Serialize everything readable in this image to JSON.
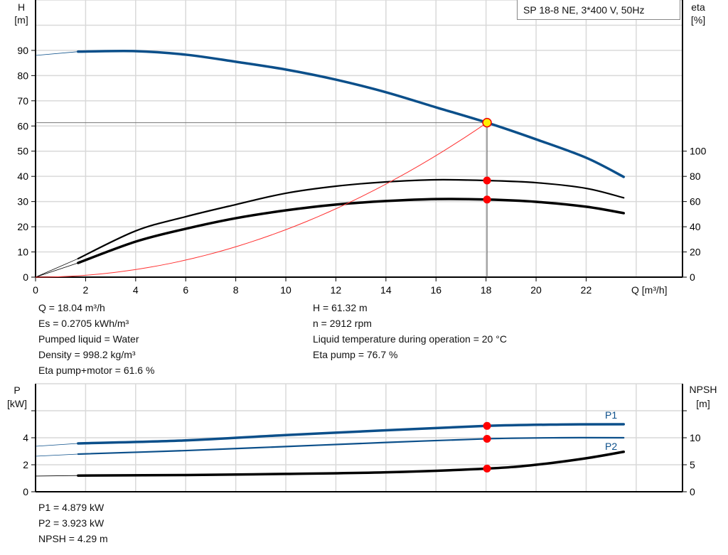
{
  "chart_data": [
    {
      "type": "line",
      "title": "SP 18-8 NE, 3*400 V, 50Hz",
      "xlabel": "Q [m³/h]",
      "xlim": [
        0,
        25.85
      ],
      "xticks": [
        0,
        2,
        4,
        6,
        8,
        10,
        12,
        14,
        16,
        18,
        20,
        22
      ],
      "ylabel_left": {
        "name": "H",
        "unit": "[m]"
      },
      "ylim_left": [
        0,
        110
      ],
      "yticks_left": [
        0,
        10,
        20,
        30,
        40,
        50,
        60,
        70,
        80,
        90
      ],
      "ylabel_right": {
        "name": "eta",
        "unit": "[%]"
      },
      "ylim_right": [
        0,
        220
      ],
      "yticks_right": [
        0,
        20,
        40,
        60,
        80,
        100
      ],
      "grid": true,
      "series": [
        {
          "id": "H",
          "axis": "left",
          "color": "#0b4f8a",
          "thin_start": [
            0,
            88
          ],
          "x": [
            1.7,
            4,
            6,
            8,
            10,
            12,
            14,
            16,
            18.04,
            20,
            22,
            23.5
          ],
          "y": [
            89.5,
            89.7,
            88.3,
            85.5,
            82.4,
            78.4,
            73.4,
            67.4,
            61.32,
            54.7,
            47.4,
            39.8
          ]
        },
        {
          "id": "eta_pump",
          "axis": "right",
          "color": "#000000",
          "thin_start": [
            0,
            0
          ],
          "x": [
            1.7,
            4,
            6,
            8,
            10,
            12,
            14,
            16,
            18.04,
            20,
            22,
            23.5
          ],
          "y": [
            14.7,
            36.7,
            48,
            57.6,
            66.6,
            72.2,
            75.6,
            77.3,
            76.7,
            75,
            70.5,
            63
          ]
        },
        {
          "id": "eta_total",
          "axis": "right",
          "color": "#000000",
          "thin_start": [
            0,
            0
          ],
          "x": [
            1.7,
            4,
            6,
            8,
            10,
            12,
            14,
            16,
            18.04,
            20,
            22,
            23.5
          ],
          "y": [
            11.3,
            28.2,
            38.4,
            46.8,
            53,
            57.6,
            60.4,
            62,
            61.6,
            59.8,
            55.9,
            50.8
          ]
        },
        {
          "id": "system_curve",
          "axis": "left",
          "color": "#ff3030",
          "type": "quadratic",
          "through": [
            18.04,
            61.32
          ]
        }
      ],
      "duty_point": {
        "Q": 18.04,
        "H": 61.32,
        "eta_pump": 76.7,
        "eta_total": 61.6
      }
    },
    {
      "type": "line",
      "xlim": [
        0,
        25.85
      ],
      "ylabel_left": {
        "name": "P",
        "unit": "[kW]"
      },
      "ylim_left": [
        0,
        8
      ],
      "yticks_left": [
        0,
        2,
        4
      ],
      "ylabel_right": {
        "name": "NPSH",
        "unit": "[m]"
      },
      "ylim_right": [
        0,
        20
      ],
      "yticks_right": [
        0,
        5,
        10
      ],
      "grid": true,
      "series": [
        {
          "id": "P1",
          "name": "P1",
          "axis": "left",
          "color": "#0b4f8a",
          "thin_start": [
            0,
            3.37
          ],
          "x": [
            1.7,
            6,
            10,
            14,
            18.04,
            21,
            23.5
          ],
          "y": [
            3.58,
            3.8,
            4.2,
            4.55,
            4.879,
            4.98,
            5.0
          ]
        },
        {
          "id": "P2",
          "name": "P2",
          "axis": "left",
          "color": "#0b4f8a",
          "thin_start": [
            0,
            2.63
          ],
          "x": [
            1.7,
            6,
            10,
            14,
            18.04,
            21,
            23.5
          ],
          "y": [
            2.79,
            3.05,
            3.35,
            3.65,
            3.923,
            4.0,
            4.0
          ]
        },
        {
          "id": "NPSH",
          "axis": "right",
          "color": "#000000",
          "thin_start": [
            0,
            2.9
          ],
          "x": [
            1.7,
            6,
            10,
            14,
            18.04,
            20,
            22,
            23.5
          ],
          "y": [
            3.0,
            3.1,
            3.3,
            3.6,
            4.29,
            5.0,
            6.2,
            7.4
          ]
        }
      ],
      "duty_point": {
        "Q": 18.04,
        "P1": 4.879,
        "P2": 3.923,
        "NPSH": 4.29
      }
    }
  ],
  "info": {
    "left": [
      "Q = 18.04 m³/h",
      "Es = 0.2705 kWh/m³",
      "Pumped liquid = Water",
      "Density = 998.2 kg/m³",
      "Eta pump+motor = 61.6 %"
    ],
    "right": [
      "H = 61.32 m",
      "n = 2912 rpm",
      "Liquid temperature during operation = 20 °C",
      "Eta pump = 76.7 %"
    ],
    "power": [
      "P1 = 4.879 kW",
      "P2 = 3.923 kW",
      "NPSH = 4.29 m"
    ]
  }
}
